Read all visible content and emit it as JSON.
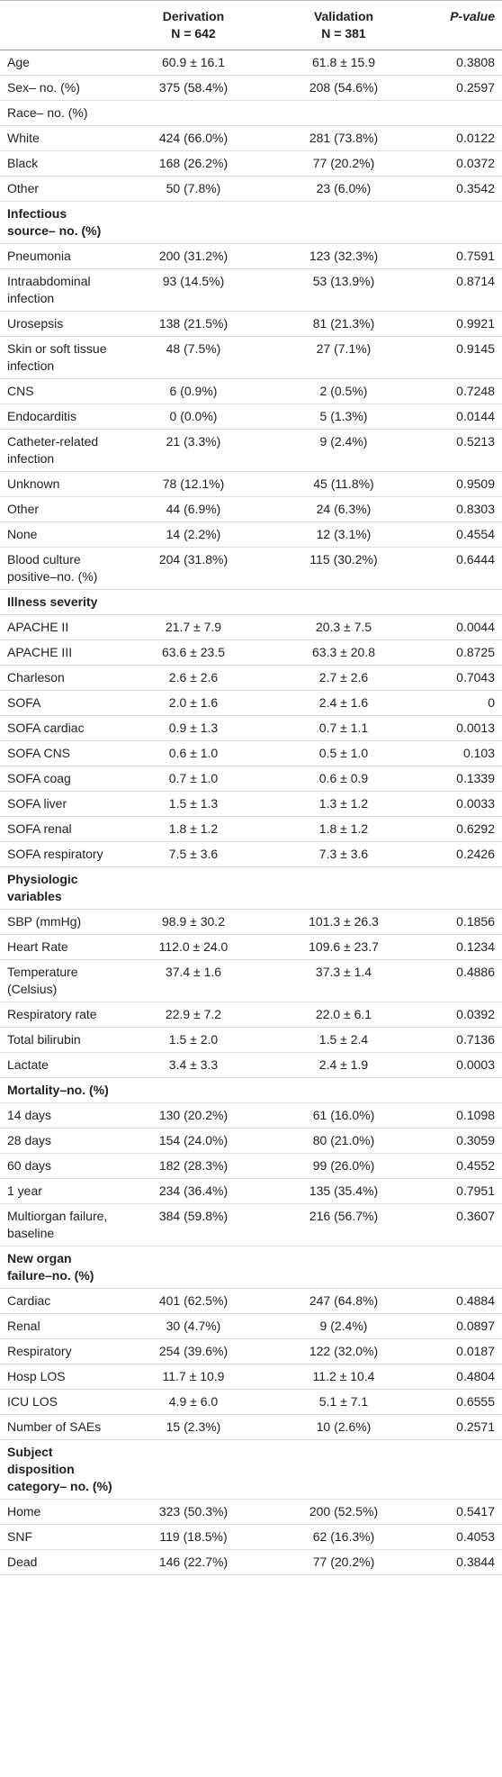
{
  "table": {
    "header": [
      "",
      {
        "title": "Derivation",
        "n": "N = 642"
      },
      {
        "title": "Validation",
        "n": "N = 381"
      },
      "P-value"
    ],
    "rows": [
      {
        "label": "Age",
        "cells": [
          "60.9 ± 16.1",
          "61.8 ± 15.9",
          "0.3808"
        ]
      },
      {
        "label": "Sex– no. (%)",
        "cells": [
          "375 (58.4%)",
          "208 (54.6%)",
          "0.2597"
        ]
      },
      {
        "label": "Race– no. (%)"
      },
      {
        "label": "White",
        "cells": [
          "424 (66.0%)",
          "281 (73.8%)",
          "0.0122"
        ]
      },
      {
        "label": "Black",
        "cells": [
          "168 (26.2%)",
          "77 (20.2%)",
          "0.0372"
        ]
      },
      {
        "label": "Other",
        "cells": [
          "50 (7.8%)",
          "23 (6.0%)",
          "0.3542"
        ]
      },
      {
        "section": "Infectious source– no. (%)"
      },
      {
        "label": "Pneumonia",
        "cells": [
          "200 (31.2%)",
          "123 (32.3%)",
          "0.7591"
        ]
      },
      {
        "label": "Intraabdominal infection",
        "cells": [
          "93 (14.5%)",
          "53 (13.9%)",
          "0.8714"
        ]
      },
      {
        "label": "Urosepsis",
        "cells": [
          "138 (21.5%)",
          "81 (21.3%)",
          "0.9921"
        ]
      },
      {
        "label": "Skin or soft tissue infection",
        "cells": [
          "48 (7.5%)",
          "27 (7.1%)",
          "0.9145"
        ]
      },
      {
        "label": "CNS",
        "cells": [
          "6 (0.9%)",
          "2 (0.5%)",
          "0.7248"
        ]
      },
      {
        "label": "Endocarditis",
        "cells": [
          "0 (0.0%)",
          "5 (1.3%)",
          "0.0144"
        ]
      },
      {
        "label": "Catheter-related infection",
        "cells": [
          "21 (3.3%)",
          "9 (2.4%)",
          "0.5213"
        ]
      },
      {
        "label": "Unknown",
        "cells": [
          "78 (12.1%)",
          "45 (11.8%)",
          "0.9509"
        ]
      },
      {
        "label": "Other",
        "cells": [
          "44 (6.9%)",
          "24 (6.3%)",
          "0.8303"
        ]
      },
      {
        "label": "None",
        "cells": [
          "14 (2.2%)",
          "12 (3.1%)",
          "0.4554"
        ]
      },
      {
        "label": "Blood culture positive–no. (%)",
        "cells": [
          "204 (31.8%)",
          "115 (30.2%)",
          "0.6444"
        ]
      },
      {
        "section": "Illness severity"
      },
      {
        "label": "APACHE II",
        "cells": [
          "21.7 ± 7.9",
          "20.3 ± 7.5",
          "0.0044"
        ]
      },
      {
        "label": "APACHE III",
        "cells": [
          "63.6 ± 23.5",
          "63.3 ± 20.8",
          "0.8725"
        ]
      },
      {
        "label": "Charleson",
        "cells": [
          "2.6 ± 2.6",
          "2.7 ± 2.6",
          "0.7043"
        ]
      },
      {
        "label": "SOFA",
        "cells": [
          "2.0 ± 1.6",
          "2.4 ± 1.6",
          "0"
        ]
      },
      {
        "label": "SOFA cardiac",
        "cells": [
          "0.9 ± 1.3",
          "0.7 ± 1.1",
          "0.0013"
        ]
      },
      {
        "label": "SOFA CNS",
        "cells": [
          "0.6 ± 1.0",
          "0.5 ± 1.0",
          "0.103"
        ]
      },
      {
        "label": "SOFA coag",
        "cells": [
          "0.7 ± 1.0",
          "0.6 ± 0.9",
          "0.1339"
        ]
      },
      {
        "label": "SOFA liver",
        "cells": [
          "1.5 ± 1.3",
          "1.3 ± 1.2",
          "0.0033"
        ]
      },
      {
        "label": "SOFA renal",
        "cells": [
          "1.8 ± 1.2",
          "1.8 ± 1.2",
          "0.6292"
        ]
      },
      {
        "label": "SOFA respiratory",
        "cells": [
          "7.5 ± 3.6",
          "7.3 ± 3.6",
          "0.2426"
        ]
      },
      {
        "section": "Physiologic variables"
      },
      {
        "label": "SBP (mmHg)",
        "cells": [
          "98.9 ± 30.2",
          "101.3 ± 26.3",
          "0.1856"
        ]
      },
      {
        "label": "Heart Rate",
        "cells": [
          "112.0 ± 24.0",
          "109.6 ± 23.7",
          "0.1234"
        ]
      },
      {
        "label": "Temperature (Celsius)",
        "cells": [
          "37.4 ± 1.6",
          "37.3 ± 1.4",
          "0.4886"
        ]
      },
      {
        "label": "Respiratory rate",
        "cells": [
          "22.9 ± 7.2",
          "22.0 ± 6.1",
          "0.0392"
        ]
      },
      {
        "label": "Total bilirubin",
        "cells": [
          "1.5 ± 2.0",
          "1.5 ± 2.4",
          "0.7136"
        ]
      },
      {
        "label": "Lactate",
        "cells": [
          "3.4 ± 3.3",
          "2.4 ± 1.9",
          "0.0003"
        ]
      },
      {
        "section": "Mortality–no. (%)"
      },
      {
        "label": "14 days",
        "cells": [
          "130 (20.2%)",
          "61 (16.0%)",
          "0.1098"
        ]
      },
      {
        "label": "28 days",
        "cells": [
          "154 (24.0%)",
          "80 (21.0%)",
          "0.3059"
        ]
      },
      {
        "label": "60 days",
        "cells": [
          "182 (28.3%)",
          "99 (26.0%)",
          "0.4552"
        ]
      },
      {
        "label": "1 year",
        "cells": [
          "234 (36.4%)",
          "135 (35.4%)",
          "0.7951"
        ]
      },
      {
        "label": "Multiorgan failure, baseline",
        "cells": [
          "384 (59.8%)",
          "216 (56.7%)",
          "0.3607"
        ]
      },
      {
        "section": "New organ failure–no. (%)"
      },
      {
        "label": "Cardiac",
        "cells": [
          "401 (62.5%)",
          "247 (64.8%)",
          "0.4884"
        ]
      },
      {
        "label": "Renal",
        "cells": [
          "30 (4.7%)",
          "9 (2.4%)",
          "0.0897"
        ]
      },
      {
        "label": "Respiratory",
        "cells": [
          "254 (39.6%)",
          "122 (32.0%)",
          "0.0187"
        ]
      },
      {
        "label": "Hosp LOS",
        "cells": [
          "11.7 ± 10.9",
          "11.2 ± 10.4",
          "0.4804"
        ]
      },
      {
        "label": "ICU LOS",
        "cells": [
          "4.9 ± 6.0",
          "5.1 ± 7.1",
          "0.6555"
        ]
      },
      {
        "label": "Number of SAEs",
        "cells": [
          "15 (2.3%)",
          "10 (2.6%)",
          "0.2571"
        ]
      },
      {
        "section": "Subject disposition category– no. (%)"
      },
      {
        "label": "Home",
        "cells": [
          "323 (50.3%)",
          "200 (52.5%)",
          "0.5417"
        ]
      },
      {
        "label": "SNF",
        "cells": [
          "119 (18.5%)",
          "62 (16.3%)",
          "0.4053"
        ]
      },
      {
        "label": "Dead",
        "cells": [
          "146 (22.7%)",
          "77 (20.2%)",
          "0.3844"
        ]
      }
    ]
  }
}
